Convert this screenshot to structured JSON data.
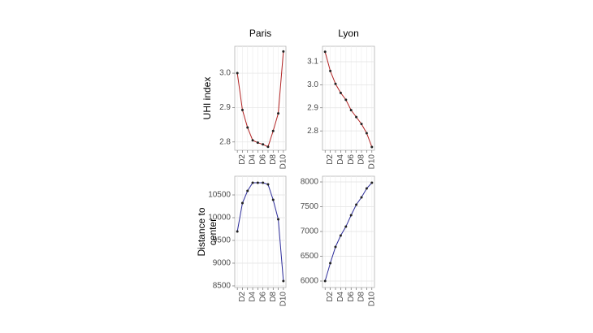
{
  "chart_data": [
    {
      "type": "line",
      "title": "Paris",
      "ylabel": [
        "UHI index"
      ],
      "categories": [
        null,
        "D2",
        null,
        "D4",
        null,
        "D6",
        null,
        "D8",
        null,
        "D10"
      ],
      "values": [
        3.0,
        2.893,
        2.842,
        2.805,
        2.798,
        2.793,
        2.786,
        2.832,
        2.883,
        3.063
      ],
      "color": "#b22222",
      "ylim": [
        2.776,
        3.078
      ],
      "yticks": [
        {
          "value": 2.8,
          "label": "2.8"
        },
        {
          "value": 2.9,
          "label": "2.9"
        },
        {
          "value": 3.0,
          "label": "3.0"
        }
      ],
      "grid": true
    },
    {
      "type": "line",
      "title": "Lyon",
      "categories": [
        null,
        "D2",
        null,
        "D4",
        null,
        "D6",
        null,
        "D8",
        null,
        "D10"
      ],
      "values": [
        3.143,
        3.06,
        3.004,
        2.965,
        2.935,
        2.89,
        2.86,
        2.83,
        2.79,
        2.73
      ],
      "color": "#b22222",
      "ylim": [
        2.716,
        3.167
      ],
      "yticks": [
        {
          "value": 2.8,
          "label": "2.8"
        },
        {
          "value": 2.9,
          "label": "2.9"
        },
        {
          "value": 3.0,
          "label": "3.0"
        },
        {
          "value": 3.1,
          "label": "3.1"
        }
      ],
      "grid": true
    },
    {
      "type": "line",
      "ylabel": [
        "Distance to",
        "center"
      ],
      "categories": [
        null,
        "D2",
        null,
        "D4",
        null,
        "D6",
        null,
        "D8",
        null,
        "D10"
      ],
      "values": [
        9696,
        10321,
        10589,
        10768,
        10768,
        10768,
        10732,
        10393,
        9964,
        8607
      ],
      "color": "#2b2b9a",
      "ylim": [
        8464,
        10911
      ],
      "yticks": [
        8500,
        9000,
        9500,
        10000,
        10500
      ],
      "grid": true
    },
    {
      "type": "line",
      "categories": [
        null,
        "D2",
        null,
        "D4",
        null,
        "D6",
        null,
        "D8",
        null,
        "D10"
      ],
      "values": [
        6000,
        6361,
        6689,
        6918,
        7098,
        7328,
        7541,
        7689,
        7869,
        7984
      ],
      "color": "#2b2b9a",
      "ylim": [
        5869,
        8115
      ],
      "yticks": [
        6000,
        6500,
        7000,
        7500,
        8000
      ],
      "grid": true
    }
  ]
}
